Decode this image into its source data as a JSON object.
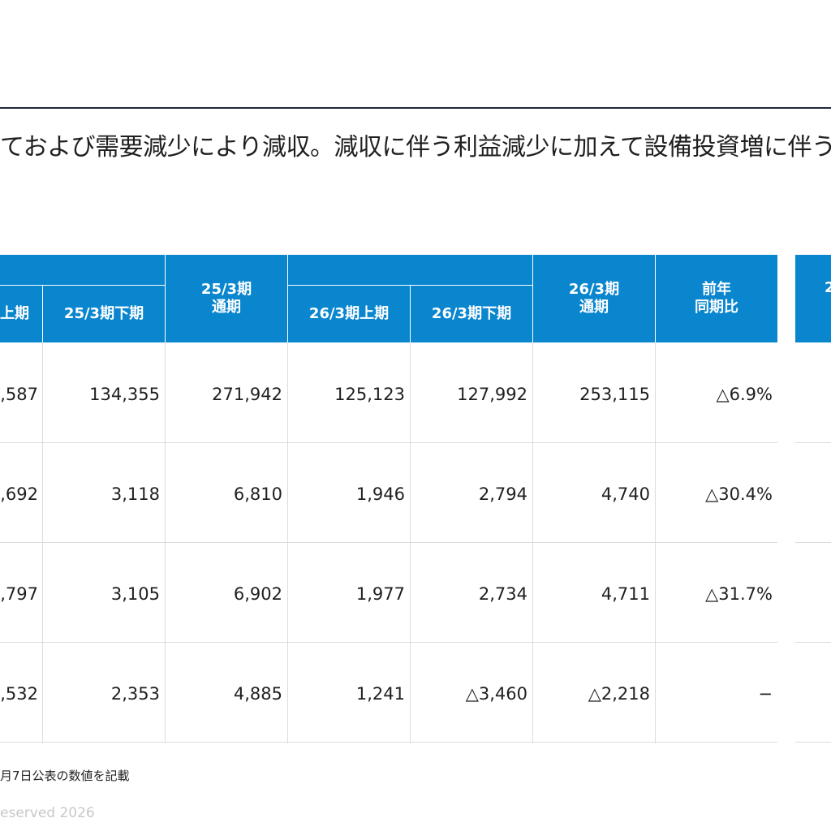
{
  "headline": "ておよび需要減少により減収。減収に伴う利益減少に加えて設備投資増に伴う",
  "table": {
    "headers": {
      "c1": "上期",
      "c2": "25/3期下期",
      "c3_line1": "25/3期",
      "c3_line2": "通期",
      "c4": "26/3期上期",
      "c5": "26/3期下期",
      "c6_line1": "26/3期",
      "c6_line2": "通期",
      "c7_line1": "前年",
      "c7_line2": "同期比",
      "c8": "2"
    },
    "rows": [
      {
        "c1": ",587",
        "c2": "134,355",
        "c3": "271,942",
        "c4": "125,123",
        "c5": "127,992",
        "c6": "253,115",
        "c7": "△6.9%"
      },
      {
        "c1": ",692",
        "c2": "3,118",
        "c3": "6,810",
        "c4": "1,946",
        "c5": "2,794",
        "c6": "4,740",
        "c7": "△30.4%"
      },
      {
        "c1": ",797",
        "c2": "3,105",
        "c3": "6,902",
        "c4": "1,977",
        "c5": "2,734",
        "c6": "4,711",
        "c7": "△31.7%"
      },
      {
        "c1": ",532",
        "c2": "2,353",
        "c3": "4,885",
        "c4": "1,241",
        "c5": "△3,460",
        "c6": "△2,218",
        "c7": "−"
      }
    ]
  },
  "footnote": "月7日公表の数値を記載",
  "copyright": "eserved 2026",
  "colors": {
    "header_blue": "#0a86cf",
    "rule": "#1e2a36",
    "grid": "#dcdcdc"
  }
}
